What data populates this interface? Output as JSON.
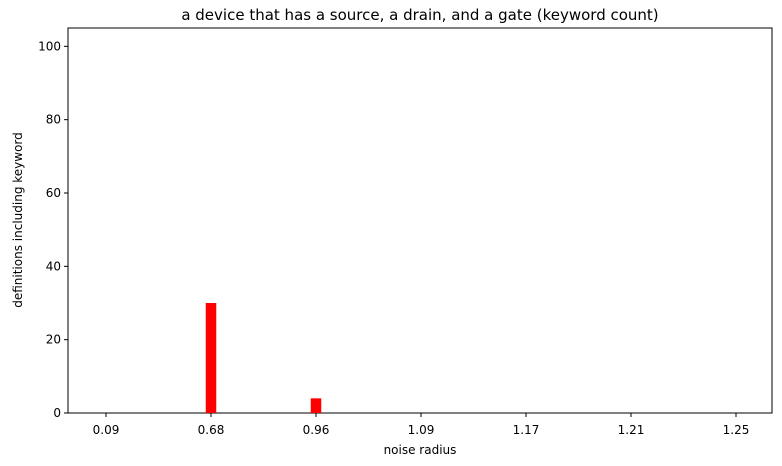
{
  "chart_data": {
    "type": "bar",
    "title": "a device that has a source, a drain, and a gate (keyword count)",
    "xlabel": "noise radius",
    "ylabel": "definitions including keyword",
    "categories": [
      "0.09",
      "0.68",
      "0.96",
      "1.09",
      "1.17",
      "1.21",
      "1.25"
    ],
    "values": [
      0,
      30,
      4,
      0,
      0,
      0,
      0
    ],
    "color": "#ff0000",
    "ylim": [
      0,
      105
    ],
    "yticks": [
      0,
      20,
      40,
      60,
      80,
      100
    ]
  }
}
